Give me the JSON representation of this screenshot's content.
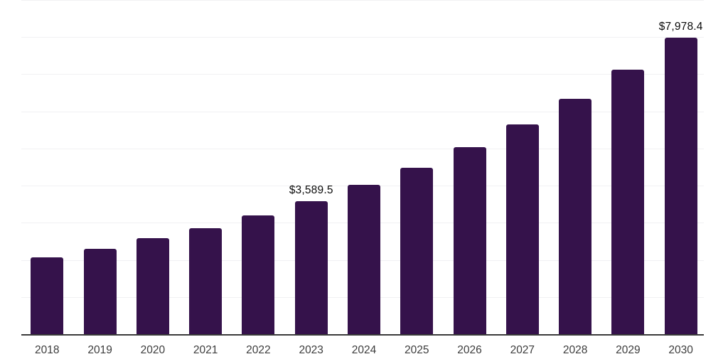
{
  "chart_data": {
    "type": "bar",
    "title": "",
    "xlabel": "",
    "ylabel": "",
    "categories": [
      "2018",
      "2019",
      "2020",
      "2021",
      "2022",
      "2023",
      "2024",
      "2025",
      "2026",
      "2027",
      "2028",
      "2029",
      "2030"
    ],
    "values": [
      2060,
      2305,
      2577,
      2858,
      3203,
      3589.5,
      4013,
      4486,
      5035,
      5648,
      6337,
      7123,
      7978.4
    ],
    "value_labels": [
      "",
      "",
      "",
      "",
      "",
      "$3,589.5",
      "",
      "",
      "",
      "",
      "",
      "",
      "$7,978.4"
    ],
    "ylim": [
      0,
      9000
    ],
    "y_gridline_step": 1000,
    "y_axis_labels_visible": false,
    "grid": "horizontal",
    "legend": "none",
    "colors": {
      "bar": "#35124B",
      "axis_line": "#3A3A3A",
      "gridline": "#F1F1F3",
      "tick_label": "#3C3C3C",
      "value_label": "#0A0A0A",
      "background": "#FFFFFF"
    }
  }
}
